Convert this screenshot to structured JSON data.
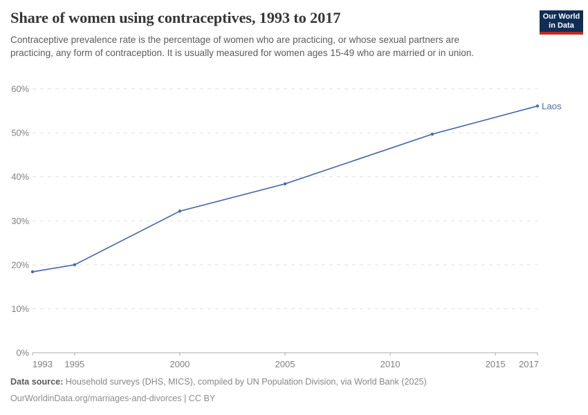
{
  "header": {
    "title": "Share of women using contraceptives, 1993 to 2017",
    "subtitle": "Contraceptive prevalence rate is the percentage of women who are practicing, or whose sexual partners are practicing, any form of contraception. It is usually measured for women ages 15-49 who are married or in union."
  },
  "logo": {
    "line1": "Our World",
    "line2": "in Data",
    "bg_color": "#102d56",
    "accent_color": "#c5291c"
  },
  "chart_data": {
    "type": "line",
    "title": "Share of women using contraceptives, 1993 to 2017",
    "xlabel": "",
    "ylabel": "",
    "xlim": [
      1993,
      2017
    ],
    "ylim": [
      0,
      60
    ],
    "x_ticks": [
      1993,
      1995,
      2000,
      2005,
      2010,
      2015,
      2017
    ],
    "y_ticks": [
      0,
      10,
      20,
      30,
      40,
      50,
      60
    ],
    "y_suffix": "%",
    "grid": "horizontal-dashed",
    "legend_position": "end-of-line",
    "series": [
      {
        "name": "Laos",
        "color": "#4c6ba8",
        "points": [
          {
            "year": 1993,
            "value": 18.4
          },
          {
            "year": 1995,
            "value": 20.0
          },
          {
            "year": 2000,
            "value": 32.2
          },
          {
            "year": 2005,
            "value": 38.4
          },
          {
            "year": 2012,
            "value": 49.7
          },
          {
            "year": 2017,
            "value": 56.1
          }
        ]
      }
    ]
  },
  "footer": {
    "source_label": "Data source:",
    "source_text": " Household surveys (DHS, MICS), compiled by UN Population Division, via World Bank (2025)",
    "citation": "OurWorldinData.org/marriages-and-divorces | CC BY"
  },
  "colors": {
    "title": "#383636",
    "subtitle": "#5b5b5b",
    "axis_label": "#7f7f7f",
    "gridline": "#e0e0e0",
    "axis_line": "#a9a9a9",
    "series_blue": "#4c6ba8"
  }
}
